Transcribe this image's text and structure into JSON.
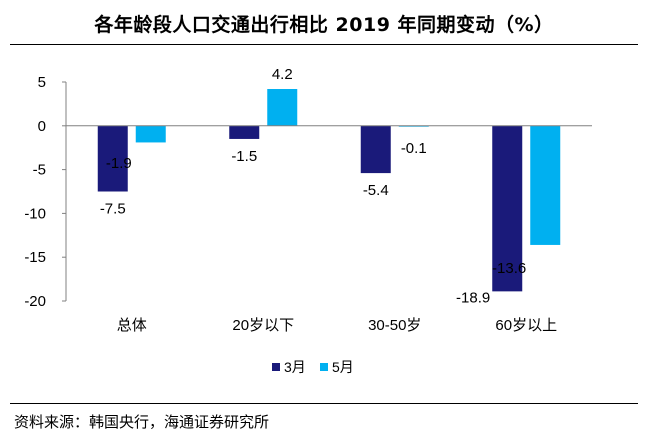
{
  "title": "各年龄段人口交通出行相比 2019 年同期变动（%）",
  "source": "资料来源：韩国央行，海通证券研究所",
  "colors": {
    "march": "#1a1a7a",
    "may": "#00b0f0",
    "axis": "#808080"
  },
  "chart_data": {
    "type": "bar",
    "title": "各年龄段人口交通出行相比 2019 年同期变动（%）",
    "categories": [
      "总体",
      "20岁以下",
      "30-50岁",
      "60岁以上"
    ],
    "series": [
      {
        "name": "3月",
        "values": [
          -7.5,
          -1.5,
          -5.4,
          -18.9
        ]
      },
      {
        "name": "5月",
        "values": [
          -1.9,
          4.2,
          -0.1,
          -13.6
        ]
      }
    ],
    "yticks": [
      5,
      0,
      -5,
      -10,
      -15,
      -20
    ],
    "ylim": [
      -20,
      5
    ],
    "xlabel": "",
    "ylabel": "",
    "legend": "bottom-center",
    "grid": false
  }
}
